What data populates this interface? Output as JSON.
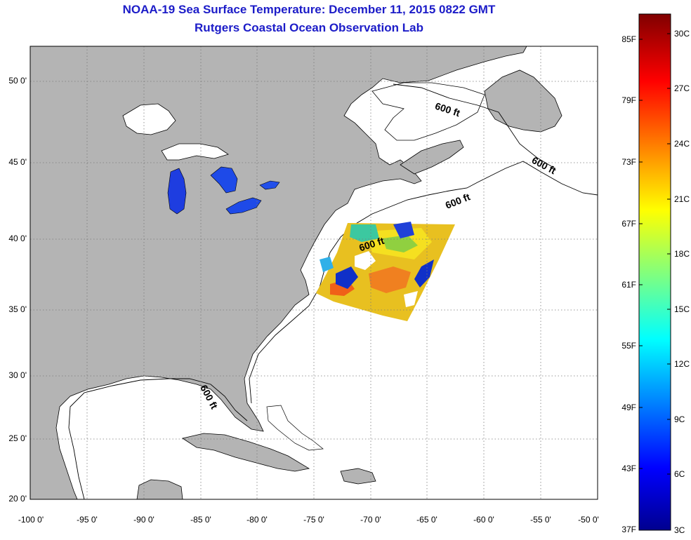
{
  "title": "NOAA-19 Sea Surface Temperature:  December 11, 2015 0822 GMT",
  "subtitle": "Rutgers Coastal Ocean Observation Lab",
  "map": {
    "lat_ticks": [
      "50 0'",
      "45 0'",
      "40 0'",
      "35 0'",
      "30 0'",
      "25 0'",
      "20 0'"
    ],
    "lon_ticks": [
      "-100 0'",
      "-95 0'",
      "-90 0'",
      "-85 0'",
      "-80 0'",
      "-75 0'",
      "-70 0'",
      "-65 0'",
      "-60 0'",
      "-55 0'",
      "-50 0'"
    ],
    "contour_labels": [
      "600 ft",
      "600 ft",
      "600 ft",
      "600 ft",
      "600 ft"
    ],
    "land_color": "#b4b4b4",
    "ocean_color": "#ffffff",
    "grid": "dotted"
  },
  "colorbar": {
    "fahrenheit": [
      "85F",
      "79F",
      "73F",
      "67F",
      "61F",
      "55F",
      "49F",
      "43F",
      "37F"
    ],
    "celsius": [
      "30C",
      "27C",
      "24C",
      "21C",
      "18C",
      "15C",
      "12C",
      "9C",
      "6C",
      "3C"
    ],
    "colormap": "jet"
  }
}
